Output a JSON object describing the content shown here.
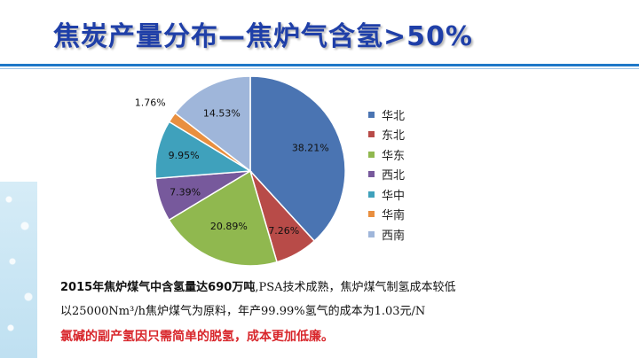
{
  "slide": {
    "title": "焦炭产量分布—焦炉气含氢>50%"
  },
  "chart_data": {
    "type": "pie",
    "slices": [
      {
        "label": "华北",
        "value": 38.21,
        "display": "38.21%",
        "color": "#4a74b2"
      },
      {
        "label": "东北",
        "value": 7.26,
        "display": "7.26%",
        "color": "#b84b48"
      },
      {
        "label": "华东",
        "value": 20.89,
        "display": "20.89%",
        "color": "#90b84f"
      },
      {
        "label": "西北",
        "value": 7.39,
        "display": "7.39%",
        "color": "#77599c"
      },
      {
        "label": "华中",
        "value": 9.95,
        "display": "9.95%",
        "color": "#3fa1bc"
      },
      {
        "label": "华南",
        "value": 1.76,
        "display": "1.76%",
        "color": "#e98f3f"
      },
      {
        "label": "西南",
        "value": 14.53,
        "display": "14.53%",
        "color": "#9fb6da"
      }
    ],
    "legend_position": "right"
  },
  "notes": {
    "line1_bold": "2015年焦炉煤气中含氢量达690万吨",
    "line1_rest": ",PSA技术成熟，焦炉煤气制氢成本较低",
    "line2": "以25000Nm³/h焦炉煤气为原料，年产99.99%氢气的成本为1.03元/N",
    "line3": "氯碱的副产氢因只需简单的脱氢，成本更加低廉。"
  }
}
